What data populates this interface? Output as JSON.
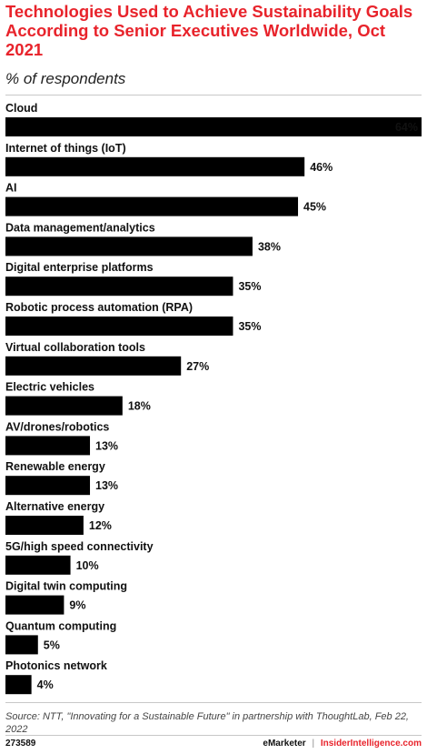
{
  "header": {
    "title": "Technologies Used to Achieve Sustainability Goals According to Senior Executives Worldwide, Oct 2021",
    "subtitle": "% of respondents"
  },
  "chart_data": {
    "type": "bar",
    "orientation": "horizontal",
    "categories": [
      "Cloud",
      "Internet of things (IoT)",
      "AI",
      "Data management/analytics",
      "Digital enterprise platforms",
      "Robotic process automation (RPA)",
      "Virtual collaboration tools",
      "Electric vehicles",
      "AV/drones/robotics",
      "Renewable energy",
      "Alternative energy",
      "5G/high speed connectivity",
      "Digital twin computing",
      "Quantum computing",
      "Photonics network"
    ],
    "values": [
      64,
      46,
      45,
      38,
      35,
      35,
      27,
      18,
      13,
      13,
      12,
      10,
      9,
      5,
      4
    ],
    "value_suffix": "%",
    "xlim": [
      0,
      64
    ],
    "grid": false,
    "legend": "none",
    "bar_color": "#000000"
  },
  "footer": {
    "source": "Source: NTT, \"Innovating for a Sustainable Future\" in partnership with ThoughtLab, Feb 22, 2022",
    "chart_id": "273589",
    "brand_emarketer": "eMarketer",
    "brand_separator": "|",
    "brand_insider": "InsiderIntelligence.com"
  },
  "colors": {
    "title": "#e8232b",
    "bar": "#000000",
    "rule": "#c8c8c8"
  }
}
